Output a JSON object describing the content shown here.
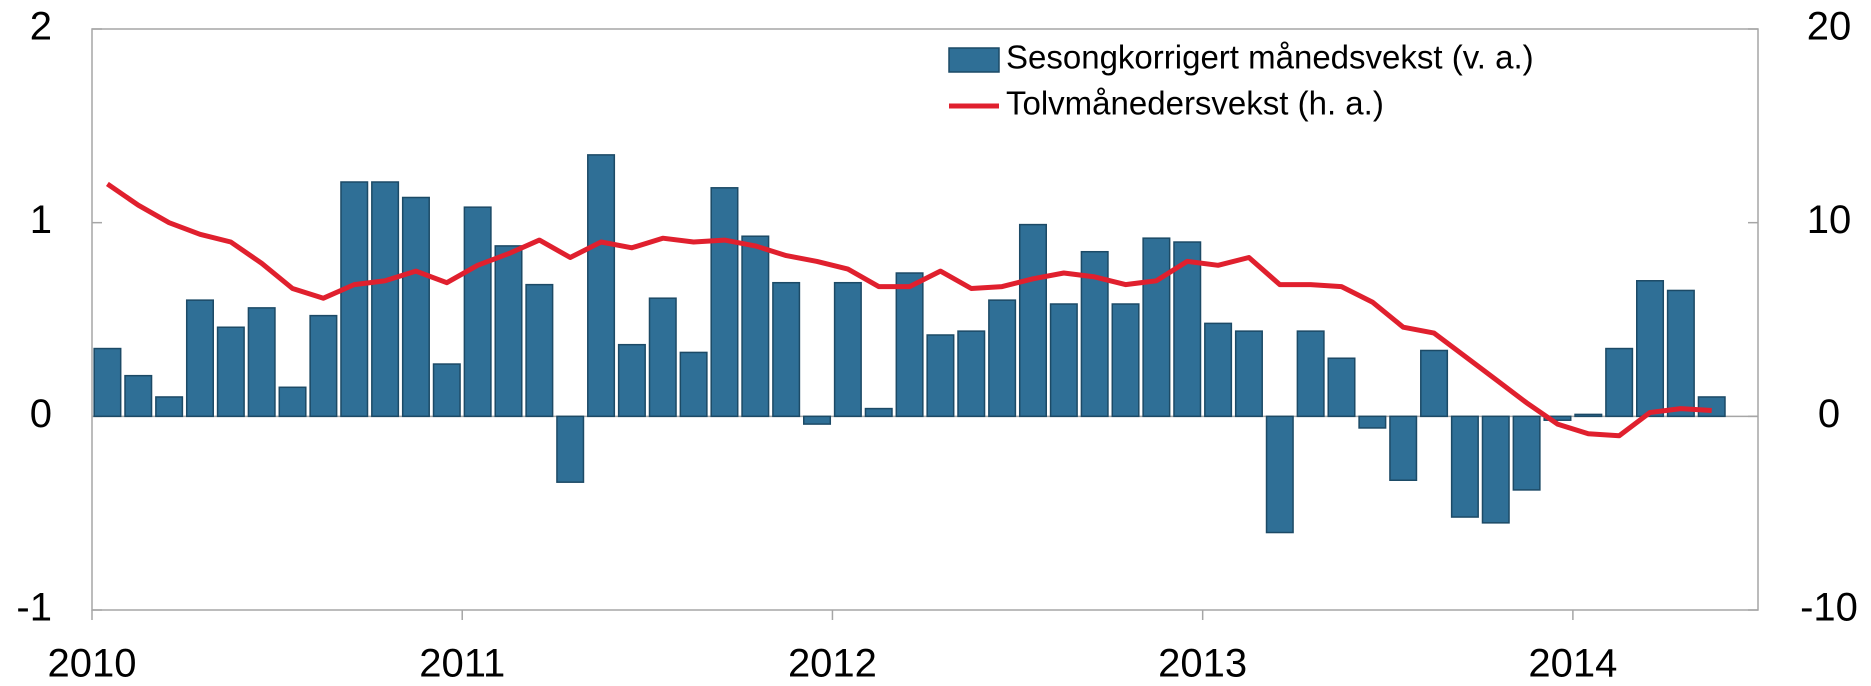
{
  "chart_data": {
    "type": "bar-line",
    "categories": [
      "2010",
      null,
      null,
      null,
      null,
      null,
      null,
      null,
      null,
      null,
      null,
      null,
      "2011",
      null,
      null,
      null,
      null,
      null,
      null,
      null,
      null,
      null,
      null,
      null,
      "2012",
      null,
      null,
      null,
      null,
      null,
      null,
      null,
      null,
      null,
      null,
      null,
      "2013",
      null,
      null,
      null,
      null,
      null,
      null,
      null,
      null,
      null,
      null,
      null,
      "2014",
      null,
      null,
      null,
      null
    ],
    "series": [
      {
        "name": "Sesongkorrigert månedsvekst (v. a.)",
        "type": "bar",
        "color": "#2f6f96",
        "axis": "y",
        "values": [
          0.35,
          0.21,
          0.1,
          0.6,
          0.46,
          0.56,
          0.15,
          0.52,
          1.21,
          1.21,
          1.13,
          0.27,
          1.08,
          0.88,
          0.68,
          -0.34,
          1.35,
          0.37,
          0.61,
          0.33,
          1.18,
          0.93,
          0.69,
          -0.04,
          0.69,
          0.04,
          0.74,
          0.42,
          0.44,
          0.6,
          0.99,
          0.58,
          0.85,
          0.58,
          0.92,
          0.9,
          0.48,
          0.44,
          -0.6,
          0.44,
          0.3,
          -0.06,
          -0.33,
          0.34,
          -0.52,
          -0.55,
          -0.38,
          -0.02,
          0.01,
          0.35,
          0.7,
          0.65,
          0.1
        ]
      },
      {
        "name": "Tolvmånedersvekst (h. a.)",
        "type": "line",
        "color": "#e0202e",
        "axis": "y2",
        "values": [
          12.0,
          10.9,
          10.0,
          9.4,
          9.0,
          7.9,
          6.6,
          6.1,
          6.8,
          7.0,
          7.5,
          6.9,
          7.8,
          8.4,
          9.1,
          8.2,
          9.0,
          8.7,
          9.2,
          9.0,
          9.1,
          8.8,
          8.3,
          8.0,
          7.6,
          6.7,
          6.7,
          7.5,
          6.6,
          6.7,
          7.1,
          7.4,
          7.2,
          6.8,
          7.0,
          8.0,
          7.8,
          8.2,
          6.8,
          6.8,
          6.7,
          5.9,
          4.6,
          4.3,
          3.1,
          1.9,
          0.7,
          -0.4,
          -0.9,
          -1.0,
          0.2,
          0.4,
          0.3
        ]
      }
    ],
    "ylim": [
      -1,
      2
    ],
    "yticks": [
      -1,
      0,
      1,
      2
    ],
    "y2lim": [
      -10,
      20
    ],
    "y2ticks": [
      -10,
      0,
      10,
      20
    ],
    "grid": false,
    "legend": "top-right"
  }
}
